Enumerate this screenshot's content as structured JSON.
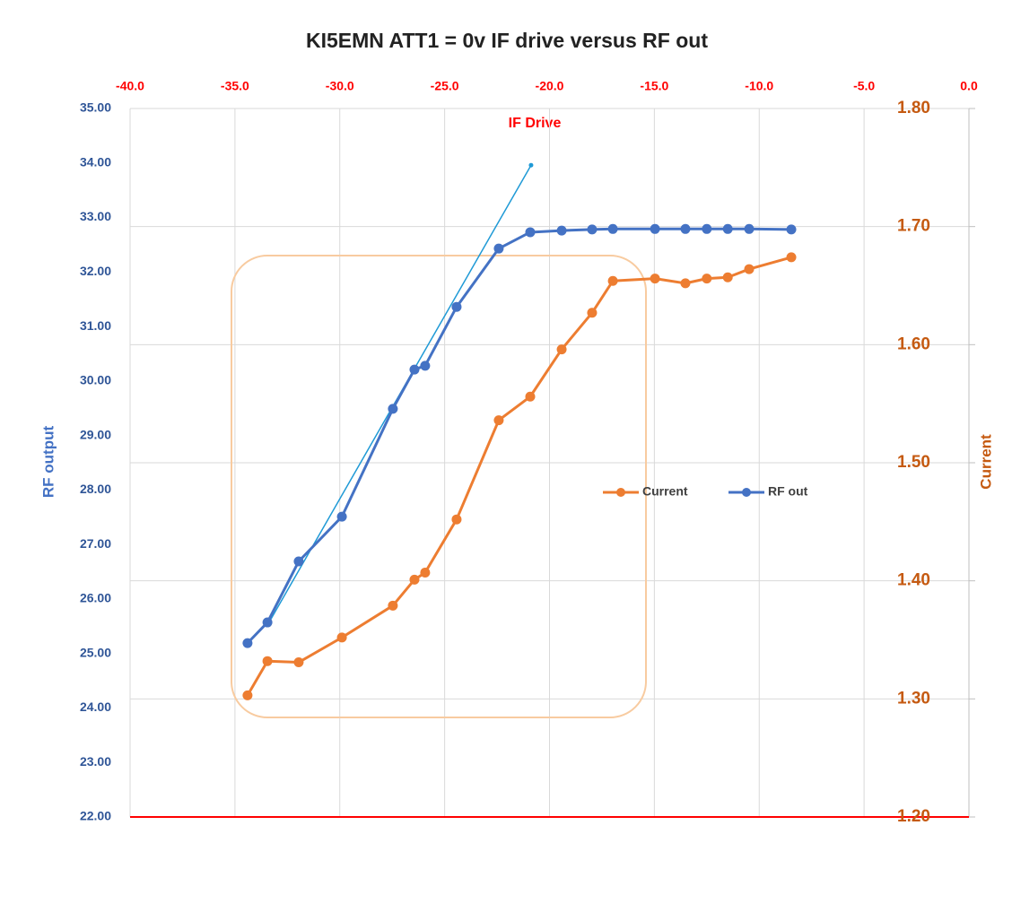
{
  "chart_data": {
    "type": "line",
    "title": "KI5EMN ATT1 = 0v  IF drive versus RF out",
    "x_label": "IF Drive",
    "y_label": "RF output",
    "y2_label": "Current",
    "xlim": [
      -40,
      0
    ],
    "xticks": [
      {
        "value": -40,
        "label": "-40.0"
      },
      {
        "value": -35,
        "label": "-35.0"
      },
      {
        "value": -30,
        "label": "-30.0"
      },
      {
        "value": -25,
        "label": "-25.0"
      },
      {
        "value": -20,
        "label": "-20.0"
      },
      {
        "value": -15,
        "label": "-15.0"
      },
      {
        "value": -10,
        "label": "-10.0"
      },
      {
        "value": -5,
        "label": "-5.0"
      },
      {
        "value": 0,
        "label": "0.0"
      }
    ],
    "ylim": [
      22,
      35
    ],
    "yticks": [
      {
        "value": 35,
        "label": "35.00"
      },
      {
        "value": 34,
        "label": "34.00"
      },
      {
        "value": 33,
        "label": "33.00"
      },
      {
        "value": 32,
        "label": "32.00"
      },
      {
        "value": 31,
        "label": "31.00"
      },
      {
        "value": 30,
        "label": "30.00"
      },
      {
        "value": 29,
        "label": "29.00"
      },
      {
        "value": 28,
        "label": "28.00"
      },
      {
        "value": 27,
        "label": "27.00"
      },
      {
        "value": 26,
        "label": "26.00"
      },
      {
        "value": 25,
        "label": "25.00"
      },
      {
        "value": 24,
        "label": "24.00"
      },
      {
        "value": 23,
        "label": "23.00"
      },
      {
        "value": 22,
        "label": "22.00"
      }
    ],
    "y2lim": [
      1.2,
      1.8
    ],
    "y2ticks": [
      {
        "value": 1.8,
        "label": "1.80"
      },
      {
        "value": 1.7,
        "label": "1.70"
      },
      {
        "value": 1.6,
        "label": "1.60"
      },
      {
        "value": 1.5,
        "label": "1.50"
      },
      {
        "value": 1.4,
        "label": "1.40"
      },
      {
        "value": 1.3,
        "label": "1.30"
      },
      {
        "value": 1.2,
        "label": "1.20"
      }
    ],
    "grid": true,
    "legend_position": "right",
    "x": [
      -34.4,
      -33.45,
      -31.96,
      -29.9,
      -27.47,
      -26.44,
      -25.93,
      -24.43,
      -22.42,
      -20.92,
      -19.42,
      -17.97,
      -16.98,
      -14.97,
      -13.52,
      -12.5,
      -11.5,
      -10.48,
      -8.47
    ],
    "series": [
      {
        "name": "Current",
        "color": "#ed7d31",
        "axis": "y2",
        "values": [
          1.303,
          1.332,
          1.331,
          1.352,
          1.379,
          1.401,
          1.407,
          1.452,
          1.536,
          1.556,
          1.596,
          1.627,
          1.654,
          1.656,
          1.652,
          1.656,
          1.657,
          1.664,
          1.674
        ]
      },
      {
        "name": "RF out",
        "color": "#4472c4",
        "values": [
          25.19,
          25.57,
          26.69,
          27.51,
          29.49,
          30.21,
          30.28,
          31.36,
          32.43,
          32.73,
          32.76,
          32.78,
          32.79,
          32.79,
          32.79,
          32.79,
          32.79,
          32.79,
          32.78
        ]
      }
    ],
    "trendline": {
      "color": "#1f9ad6",
      "x": [
        -33.45,
        -20.88
      ],
      "values": [
        25.52,
        33.96
      ]
    }
  }
}
